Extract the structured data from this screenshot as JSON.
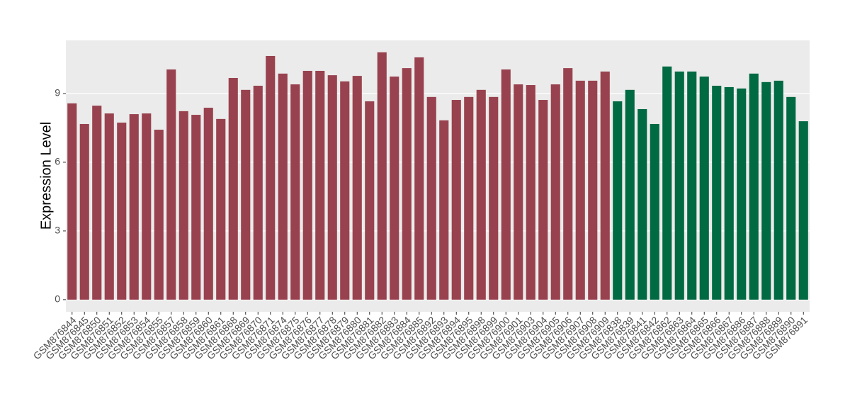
{
  "chart_data": {
    "type": "bar",
    "y_label": "Expression Level",
    "categories": [
      "GSM876844",
      "GSM876845",
      "GSM876850",
      "GSM876851",
      "GSM876852",
      "GSM876853",
      "GSM876854",
      "GSM876855",
      "GSM876857",
      "GSM876858",
      "GSM876859",
      "GSM876860",
      "GSM876861",
      "GSM876868",
      "GSM876869",
      "GSM876870",
      "GSM876871",
      "GSM876874",
      "GSM876875",
      "GSM876876",
      "GSM876877",
      "GSM876878",
      "GSM876879",
      "GSM876880",
      "GSM876881",
      "GSM876882",
      "GSM876883",
      "GSM876884",
      "GSM876885",
      "GSM876892",
      "GSM876893",
      "GSM876894",
      "GSM876895",
      "GSM876898",
      "GSM876899",
      "GSM876900",
      "GSM876901",
      "GSM876903",
      "GSM876904",
      "GSM876905",
      "GSM876906",
      "GSM876907",
      "GSM876908",
      "GSM876909",
      "GSM876838",
      "GSM876839",
      "GSM876841",
      "GSM876842",
      "GSM876862",
      "GSM876863",
      "GSM876864",
      "GSM876865",
      "GSM876866",
      "GSM876867",
      "GSM876886",
      "GSM876887",
      "GSM876888",
      "GSM876889",
      "GSM876890",
      "GSM876891"
    ],
    "values": [
      8.57,
      7.67,
      8.47,
      8.13,
      7.73,
      8.1,
      8.13,
      7.42,
      10.05,
      8.23,
      8.07,
      8.38,
      7.89,
      9.68,
      9.16,
      9.34,
      10.64,
      9.87,
      9.4,
      9.99,
      9.99,
      9.8,
      9.53,
      9.77,
      8.66,
      10.8,
      9.74,
      10.11,
      10.58,
      8.85,
      7.83,
      8.72,
      8.85,
      9.16,
      8.85,
      10.05,
      9.4,
      9.37,
      8.72,
      9.4,
      10.11,
      9.56,
      9.56,
      9.96,
      8.66,
      9.16,
      8.32,
      7.67,
      10.18,
      9.96,
      9.96,
      9.74,
      9.34,
      9.28,
      9.22,
      9.87,
      9.5,
      9.56,
      8.85,
      7.79
    ],
    "colors": [
      "#99424f",
      "#99424f",
      "#99424f",
      "#99424f",
      "#99424f",
      "#99424f",
      "#99424f",
      "#99424f",
      "#99424f",
      "#99424f",
      "#99424f",
      "#99424f",
      "#99424f",
      "#99424f",
      "#99424f",
      "#99424f",
      "#99424f",
      "#99424f",
      "#99424f",
      "#99424f",
      "#99424f",
      "#99424f",
      "#99424f",
      "#99424f",
      "#99424f",
      "#99424f",
      "#99424f",
      "#99424f",
      "#99424f",
      "#99424f",
      "#99424f",
      "#99424f",
      "#99424f",
      "#99424f",
      "#99424f",
      "#99424f",
      "#99424f",
      "#99424f",
      "#99424f",
      "#99424f",
      "#99424f",
      "#99424f",
      "#99424f",
      "#99424f",
      "#006a43",
      "#006a43",
      "#006a43",
      "#006a43",
      "#006a43",
      "#006a43",
      "#006a43",
      "#006a43",
      "#006a43",
      "#006a43",
      "#006a43",
      "#006a43",
      "#006a43",
      "#006a43",
      "#006a43",
      "#006a43"
    ],
    "ylim": [
      -0.53,
      11.32
    ],
    "yticks": [
      0,
      3,
      6,
      9
    ],
    "grid": true
  }
}
